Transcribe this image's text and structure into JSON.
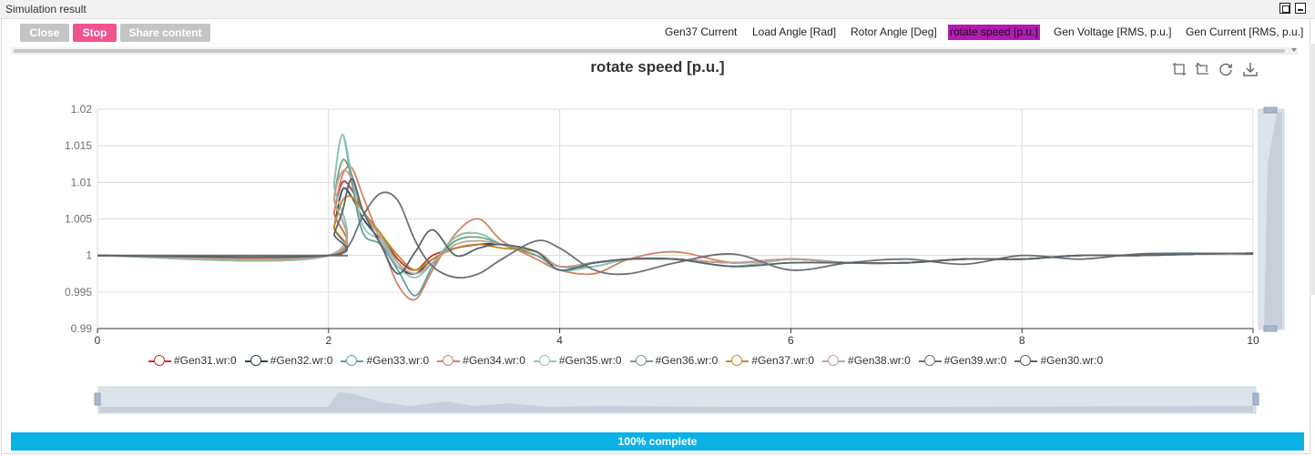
{
  "window": {
    "title": "Simulation result"
  },
  "toolbar": {
    "close_label": "Close",
    "stop_label": "Stop",
    "share_label": "Share content"
  },
  "tabs": [
    {
      "label": "Gen37 Current",
      "active": false
    },
    {
      "label": "Load Angle [Rad]",
      "active": false
    },
    {
      "label": "Rotor Angle [Deg]",
      "active": false
    },
    {
      "label": "rotate speed [p.u.]",
      "active": true
    },
    {
      "label": "Gen Voltage [RMS, p.u.]",
      "active": false
    },
    {
      "label": "Gen Current [RMS, p.u.]",
      "active": false
    }
  ],
  "chart_tools": [
    "zoom-icon",
    "zoom-reset-icon",
    "restore-icon",
    "download-icon"
  ],
  "progress": {
    "label": "100% complete",
    "value": 1.0
  },
  "chart_data": {
    "type": "line",
    "title": "rotate speed [p.u.]",
    "xlabel": "",
    "ylabel": "",
    "xlim": [
      0,
      10
    ],
    "ylim": [
      0.99,
      1.02
    ],
    "x_ticks": [
      "0",
      "2",
      "4",
      "6",
      "8",
      "10"
    ],
    "y_ticks": [
      "0.99",
      "0.995",
      "1",
      "1.005",
      "1.01",
      "1.015",
      "1.02"
    ],
    "grid": true,
    "legend_position": "bottom",
    "x": [
      0,
      2.0,
      2.05,
      2.12,
      2.2,
      2.3,
      2.45,
      2.6,
      2.75,
      2.9,
      3.1,
      3.3,
      3.5,
      3.8,
      4.0,
      4.3,
      4.6,
      5.0,
      5.5,
      6.0,
      6.5,
      7.0,
      7.5,
      8.0,
      8.5,
      9.0,
      9.5,
      10.0
    ],
    "series": [
      {
        "name": "#Gen31.wr:0",
        "color": "#c23531",
        "values": [
          1.0,
          1.0,
          1.006,
          1.01,
          1.009,
          1.006,
          1.003,
          0.9995,
          0.998,
          1.0,
          1.001,
          1.0015,
          1.0015,
          1.0005,
          0.9985,
          0.999,
          0.9995,
          0.9995,
          0.999,
          0.9995,
          0.999,
          0.999,
          0.9995,
          0.9995,
          1.0,
          1.0,
          1.0002,
          1.0003
        ]
      },
      {
        "name": "#Gen32.wr:0",
        "color": "#2f4554",
        "values": [
          1.0,
          1.0,
          1.004,
          1.009,
          1.008,
          1.005,
          1.002,
          0.9985,
          0.9975,
          0.9995,
          1.001,
          1.0015,
          1.0015,
          1.0005,
          0.9985,
          0.999,
          0.9995,
          0.9995,
          0.999,
          0.9995,
          0.999,
          0.999,
          0.9995,
          0.9995,
          1.0,
          1.0,
          1.0002,
          1.0003
        ]
      },
      {
        "name": "#Gen33.wr:0",
        "color": "#61a0a8",
        "values": [
          1.0,
          1.0,
          1.01,
          1.0165,
          1.01,
          1.003,
          1.0015,
          0.998,
          0.9945,
          0.9985,
          1.0025,
          1.003,
          1.0015,
          1.0,
          0.9985,
          0.9985,
          0.9995,
          0.9995,
          0.9985,
          0.9995,
          0.999,
          0.999,
          0.9995,
          0.9995,
          1.0,
          1.0,
          1.0002,
          1.0003
        ]
      },
      {
        "name": "#Gen34.wr:0",
        "color": "#d48265",
        "values": [
          1.0,
          1.0,
          1.006,
          1.011,
          1.012,
          1.008,
          1.002,
          0.996,
          0.994,
          0.998,
          1.003,
          1.005,
          1.002,
          0.9995,
          0.998,
          0.9975,
          0.9995,
          1.0005,
          0.999,
          0.9995,
          0.999,
          0.999,
          0.9995,
          0.9995,
          1.0,
          1.0,
          1.0002,
          1.0003
        ]
      },
      {
        "name": "#Gen35.wr:0",
        "color": "#91c7ae",
        "values": [
          1.0,
          1.0,
          1.01,
          1.0165,
          1.011,
          1.004,
          1.002,
          0.9985,
          0.997,
          0.999,
          1.0025,
          1.003,
          1.0015,
          1.0,
          0.998,
          0.9985,
          0.9995,
          0.9995,
          0.9985,
          0.9995,
          0.999,
          0.999,
          0.9995,
          0.9995,
          1.0,
          1.0,
          1.0002,
          1.0003
        ]
      },
      {
        "name": "#Gen36.wr:0",
        "color": "#749f83",
        "values": [
          1.0,
          1.0,
          1.008,
          1.013,
          1.011,
          1.006,
          1.003,
          0.999,
          0.9975,
          0.999,
          1.002,
          1.0025,
          1.0015,
          1.0,
          0.9985,
          0.999,
          0.9995,
          0.9995,
          0.999,
          0.9995,
          0.999,
          0.999,
          0.9995,
          0.9995,
          1.0,
          1.0,
          1.0002,
          1.0003
        ]
      },
      {
        "name": "#Gen37.wr:0",
        "color": "#ca8622",
        "values": [
          1.0,
          1.0,
          1.004,
          1.0075,
          1.008,
          1.006,
          1.003,
          1.0,
          0.998,
          0.9995,
          1.001,
          1.0015,
          1.001,
          1.0005,
          0.9985,
          0.999,
          0.9995,
          0.9995,
          0.999,
          0.9995,
          0.999,
          0.999,
          0.9995,
          0.9995,
          1.0,
          1.0,
          1.0002,
          1.0003
        ]
      },
      {
        "name": "#Gen38.wr:0",
        "color": "#bda29a",
        "values": [
          1.0,
          1.0,
          1.008,
          1.0115,
          1.0105,
          1.006,
          1.0025,
          0.999,
          0.9975,
          0.999,
          1.0015,
          1.002,
          1.0015,
          1.0005,
          0.9985,
          0.999,
          0.9995,
          0.9995,
          0.999,
          0.9995,
          0.999,
          0.999,
          0.9995,
          0.9995,
          1.0,
          1.0,
          1.0002,
          1.0003
        ]
      },
      {
        "name": "#Gen39.wr:0",
        "color": "#6e7074",
        "values": [
          1.0,
          1.0,
          1.0,
          1.0003,
          1.002,
          1.0055,
          1.0085,
          1.0075,
          1.002,
          0.9985,
          0.997,
          0.9975,
          0.9995,
          1.002,
          1.001,
          0.998,
          0.9975,
          0.999,
          1.0002,
          0.998,
          0.999,
          0.9995,
          0.9988,
          1.0,
          0.9995,
          1.0002,
          1.0003,
          1.0002
        ]
      },
      {
        "name": "#Gen30.wr:0",
        "color": "#546570",
        "values": [
          1.0,
          1.0,
          1.003,
          1.006,
          1.0105,
          1.006,
          1.0015,
          0.9975,
          1.0005,
          1.0035,
          1.0,
          1.001,
          1.0015,
          1.0005,
          0.998,
          0.999,
          0.9995,
          0.9995,
          0.9985,
          0.999,
          0.999,
          0.999,
          0.9995,
          0.9995,
          1.0,
          1.0,
          1.0002,
          1.0003
        ]
      }
    ]
  }
}
